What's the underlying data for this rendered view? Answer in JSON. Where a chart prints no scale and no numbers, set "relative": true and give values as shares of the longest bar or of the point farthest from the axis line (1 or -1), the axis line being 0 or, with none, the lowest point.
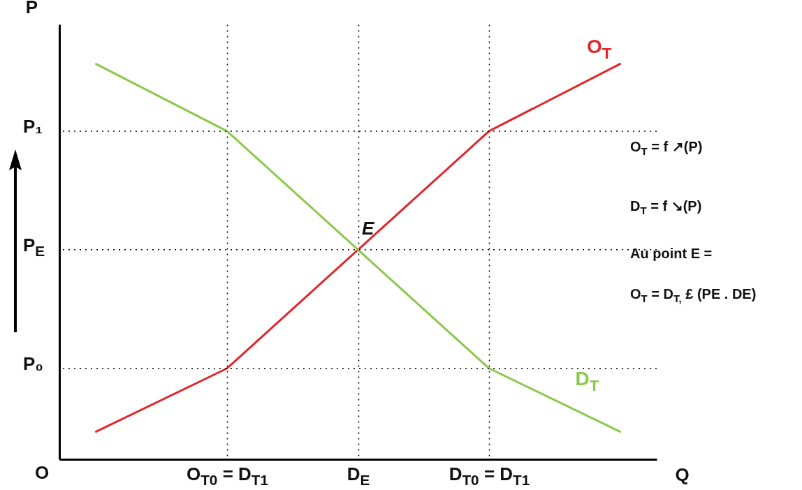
{
  "chart_data": {
    "type": "line",
    "relative": true,
    "xlabel": "Q",
    "ylabel": "P",
    "grid": "x",
    "categories": [
      null,
      "O$_{T0}$ = D$_{T1}$",
      "D$_{E}$",
      "D$_{T0}$ = D$_{T1}$",
      null
    ],
    "series": [
      {
        "name": "O$_{T}$",
        "color": "#e0262b",
        "values": [
          0.07,
          0.23,
          0.53,
          0.83,
          1
        ]
      },
      {
        "name": "D$_{T}$",
        "color": "#8cc84b",
        "values": [
          1,
          0.83,
          0.53,
          0.23,
          0.07
        ]
      }
    ],
    "ref_lines": [
      {
        "axis": "y",
        "value": 0.83,
        "label": "P₁",
        "color": "#000000",
        "line_style": "dotted"
      },
      {
        "axis": "y",
        "value": 0.53,
        "label": "P$_{E}$",
        "color": "#000000",
        "line_style": "dotted"
      },
      {
        "axis": "y",
        "value": 0.23,
        "label": "P₀",
        "color": "#000000",
        "line_style": "dotted"
      }
    ],
    "annotations": [
      "E",
      "O",
      "O$_{T}$ = f ↗(P)",
      "D$_{T}$ = f ↘(P)",
      "Au point E =",
      "O$_{T}$ = D$_{T,}$ £ (PE . DE)"
    ]
  }
}
